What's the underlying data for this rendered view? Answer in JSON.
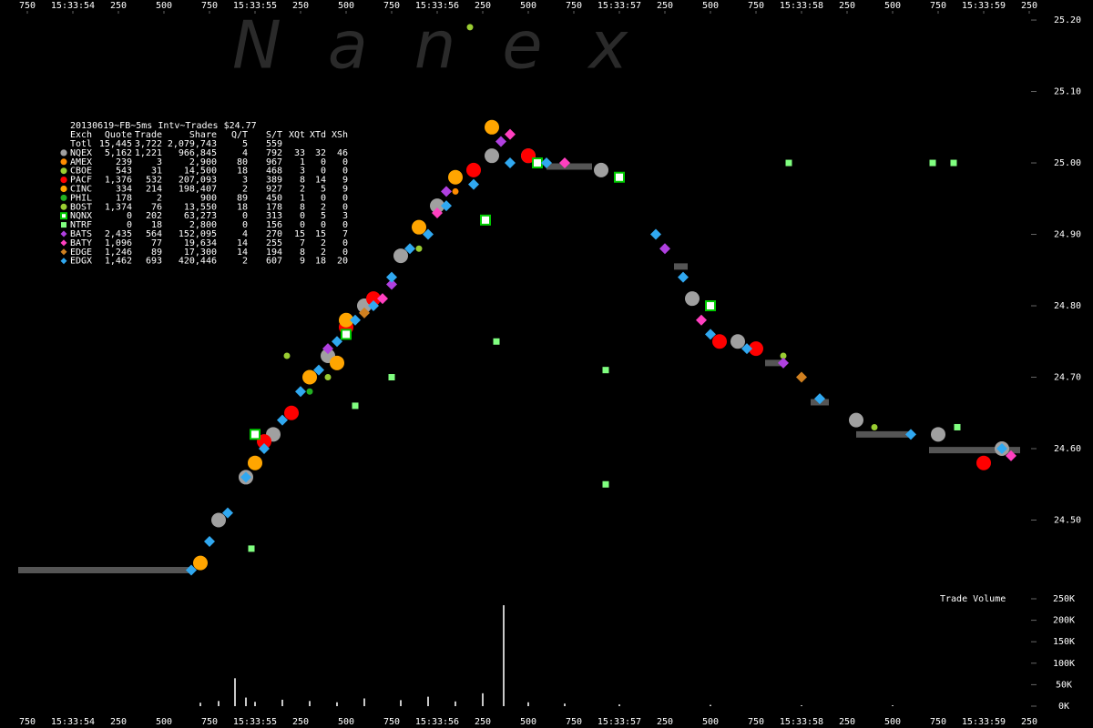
{
  "chart_data": {
    "type": "scatter",
    "watermark": "N a n e x",
    "xlim": [
      600,
      6600
    ],
    "xticks": [
      {
        "value": 750,
        "label": "750"
      },
      {
        "value": 1000,
        "label": "15:33:54"
      },
      {
        "value": 1250,
        "label": "250"
      },
      {
        "value": 1500,
        "label": "500"
      },
      {
        "value": 1750,
        "label": "750"
      },
      {
        "value": 2000,
        "label": "15:33:55"
      },
      {
        "value": 2250,
        "label": "250"
      },
      {
        "value": 2500,
        "label": "500"
      },
      {
        "value": 2750,
        "label": "750"
      },
      {
        "value": 3000,
        "label": "15:33:56"
      },
      {
        "value": 3250,
        "label": "250"
      },
      {
        "value": 3500,
        "label": "500"
      },
      {
        "value": 3750,
        "label": "750"
      },
      {
        "value": 4000,
        "label": "15:33:57"
      },
      {
        "value": 4250,
        "label": "250"
      },
      {
        "value": 4500,
        "label": "500"
      },
      {
        "value": 4750,
        "label": "750"
      },
      {
        "value": 5000,
        "label": "15:33:58"
      },
      {
        "value": 5250,
        "label": "250"
      },
      {
        "value": 5500,
        "label": "500"
      },
      {
        "value": 5750,
        "label": "750"
      },
      {
        "value": 6000,
        "label": "15:33:59"
      },
      {
        "value": 6250,
        "label": "250"
      }
    ],
    "ylim": [
      24.4,
      25.23
    ],
    "yticks": [
      {
        "value": 25.2,
        "label": "25.20"
      },
      {
        "value": 25.1,
        "label": "25.10"
      },
      {
        "value": 25.0,
        "label": "25.00"
      },
      {
        "value": 24.9,
        "label": "24.90"
      },
      {
        "value": 24.8,
        "label": "24.80"
      },
      {
        "value": 24.7,
        "label": "24.70"
      },
      {
        "value": 24.6,
        "label": "24.60"
      },
      {
        "value": 24.5,
        "label": "24.50"
      }
    ],
    "steps": {
      "color": "#555555",
      "x": [
        700,
        1650,
        1660,
        3600,
        3850,
        3860,
        4300,
        4375,
        4380,
        4800,
        4900,
        4910,
        5050,
        5150,
        5160,
        5300,
        5600,
        5610,
        5700,
        6200
      ],
      "values": [
        24.43,
        24.43,
        null,
        24.995,
        24.995,
        null,
        24.855,
        24.855,
        null,
        24.72,
        24.72,
        null,
        24.665,
        24.665,
        null,
        24.62,
        24.62,
        null,
        24.598,
        24.598
      ]
    },
    "series": [
      {
        "name": "NQEX",
        "color": "#a0a0a0",
        "marker": "circle",
        "x": [
          1800,
          1950,
          2100,
          2400,
          2600,
          2800,
          3000,
          3300,
          3500,
          3900,
          4400,
          4650,
          5300,
          5750,
          6100
        ],
        "values": [
          24.5,
          24.56,
          24.62,
          24.73,
          24.8,
          24.87,
          24.94,
          25.01,
          25.01,
          24.99,
          24.81,
          24.75,
          24.64,
          24.62,
          24.6
        ]
      },
      {
        "name": "AMEX",
        "color": "#ff8c00",
        "marker": "dot",
        "x": [
          3100
        ],
        "values": [
          24.96
        ]
      },
      {
        "name": "CBOE",
        "color": "#9acd32",
        "marker": "dot",
        "x": [
          2175,
          3180,
          4900
        ],
        "values": [
          24.73,
          25.19,
          24.73
        ]
      },
      {
        "name": "PACF",
        "color": "#ff0000",
        "marker": "circle",
        "x": [
          2050,
          2200,
          2500,
          2650,
          3200,
          3500,
          4550,
          4750,
          6000
        ],
        "values": [
          24.61,
          24.65,
          24.77,
          24.81,
          24.99,
          25.01,
          24.75,
          24.74,
          24.58
        ]
      },
      {
        "name": "CINC",
        "color": "#ffa500",
        "marker": "circle",
        "x": [
          1700,
          2000,
          2300,
          2450,
          2500,
          2900,
          3100,
          3300
        ],
        "values": [
          24.44,
          24.58,
          24.7,
          24.72,
          24.78,
          24.91,
          24.98,
          25.05
        ]
      },
      {
        "name": "PHIL",
        "color": "#22b022",
        "marker": "dot",
        "x": [
          2300,
          4350
        ],
        "values": [
          24.68,
          24.84
        ]
      },
      {
        "name": "BOST",
        "color": "#9acd32",
        "marker": "dot",
        "x": [
          2400,
          2900,
          5400
        ],
        "values": [
          24.7,
          24.88,
          24.63
        ]
      },
      {
        "name": "NQNX",
        "color": "#00cc00",
        "marker": "square-open",
        "x": [
          2000,
          2500,
          3265,
          3550,
          4000,
          4500
        ],
        "values": [
          24.62,
          24.76,
          24.92,
          25.0,
          24.98,
          24.8
        ]
      },
      {
        "name": "NTRF",
        "color": "#80ff80",
        "marker": "square",
        "x": [
          1980,
          2550,
          2750,
          3325,
          3925,
          3925,
          4930,
          5720,
          5835,
          5855
        ],
        "values": [
          24.46,
          24.66,
          24.7,
          24.75,
          24.55,
          24.71,
          25.0,
          25.0,
          25.0,
          24.63
        ]
      },
      {
        "name": "BATS",
        "color": "#b040e0",
        "marker": "diamond",
        "x": [
          2400,
          2750,
          3050,
          3350,
          4250,
          4900
        ],
        "values": [
          24.74,
          24.83,
          24.96,
          25.03,
          24.88,
          24.72
        ]
      },
      {
        "name": "BATY",
        "color": "#ff40c0",
        "marker": "diamond",
        "x": [
          2700,
          3000,
          3400,
          3700,
          4450,
          6150
        ],
        "values": [
          24.81,
          24.93,
          25.04,
          25.0,
          24.78,
          24.59
        ]
      },
      {
        "name": "EDGE",
        "color": "#d08020",
        "marker": "diamond",
        "x": [
          2600,
          5000
        ],
        "values": [
          24.79,
          24.7
        ]
      },
      {
        "name": "EDGX",
        "color": "#30a8f0",
        "marker": "diamond",
        "x": [
          1650,
          1750,
          1850,
          1950,
          2050,
          2150,
          2250,
          2350,
          2450,
          2550,
          2650,
          2750,
          2850,
          2950,
          3050,
          3200,
          3400,
          3600,
          4200,
          4350,
          4500,
          4700,
          5100,
          5600,
          6100
        ],
        "values": [
          24.43,
          24.47,
          24.51,
          24.56,
          24.6,
          24.64,
          24.68,
          24.71,
          24.75,
          24.78,
          24.8,
          24.84,
          24.88,
          24.9,
          24.94,
          24.97,
          25.0,
          25.0,
          24.9,
          24.84,
          24.76,
          24.74,
          24.67,
          24.62,
          24.6
        ]
      }
    ],
    "stats": {
      "title": "20130619~FB~5ms Intv~Trades $24.77",
      "columns": [
        "Exch",
        "Quote",
        "Trade",
        "Share",
        "Q/T",
        "S/T",
        "XQt",
        "XTd",
        "XSh"
      ],
      "total": {
        "label": "Totl",
        "cells": [
          "15,445",
          "3,722",
          "2,079,743",
          "5",
          "559"
        ]
      },
      "rows": [
        [
          "5,162",
          "1,221",
          "966,845",
          "4",
          "792",
          "33",
          "32",
          "46"
        ],
        [
          "239",
          "3",
          "2,900",
          "80",
          "967",
          "1",
          "0",
          "0"
        ],
        [
          "543",
          "31",
          "14,500",
          "18",
          "468",
          "3",
          "0",
          "0"
        ],
        [
          "1,376",
          "532",
          "207,093",
          "3",
          "389",
          "8",
          "14",
          "9"
        ],
        [
          "334",
          "214",
          "198,407",
          "2",
          "927",
          "2",
          "5",
          "9"
        ],
        [
          "178",
          "2",
          "900",
          "89",
          "450",
          "1",
          "0",
          "0"
        ],
        [
          "1,374",
          "76",
          "13,550",
          "18",
          "178",
          "8",
          "2",
          "0"
        ],
        [
          "0",
          "202",
          "63,273",
          "0",
          "313",
          "0",
          "5",
          "3"
        ],
        [
          "0",
          "18",
          "2,800",
          "0",
          "156",
          "0",
          "0",
          "0"
        ],
        [
          "2,435",
          "564",
          "152,095",
          "4",
          "270",
          "15",
          "15",
          "7"
        ],
        [
          "1,096",
          "77",
          "19,634",
          "14",
          "255",
          "7",
          "2",
          "0"
        ],
        [
          "1,246",
          "89",
          "17,300",
          "14",
          "194",
          "8",
          "2",
          "0"
        ],
        [
          "1,462",
          "693",
          "420,446",
          "2",
          "607",
          "9",
          "18",
          "20"
        ]
      ]
    },
    "volume": {
      "label": "Trade Volume",
      "color": "#c8c8c8",
      "ylim": [
        0,
        250000
      ],
      "yticks": [
        {
          "value": 250000,
          "label": "250K"
        },
        {
          "value": 200000,
          "label": "200K"
        },
        {
          "value": 150000,
          "label": "150K"
        },
        {
          "value": 100000,
          "label": "100K"
        },
        {
          "value": 50000,
          "label": "50K"
        },
        {
          "value": 0,
          "label": "0K"
        }
      ],
      "x": [
        1700,
        1800,
        1890,
        1950,
        2000,
        2150,
        2300,
        2450,
        2600,
        2800,
        2950,
        3100,
        3250,
        3365,
        3500,
        3700,
        4000,
        4500,
        5000,
        5500
      ],
      "values": [
        8000,
        12000,
        65000,
        20000,
        10000,
        15000,
        12000,
        9000,
        18000,
        14000,
        22000,
        11000,
        30000,
        235000,
        9000,
        6000,
        4000,
        3000,
        2000,
        2000
      ]
    }
  }
}
